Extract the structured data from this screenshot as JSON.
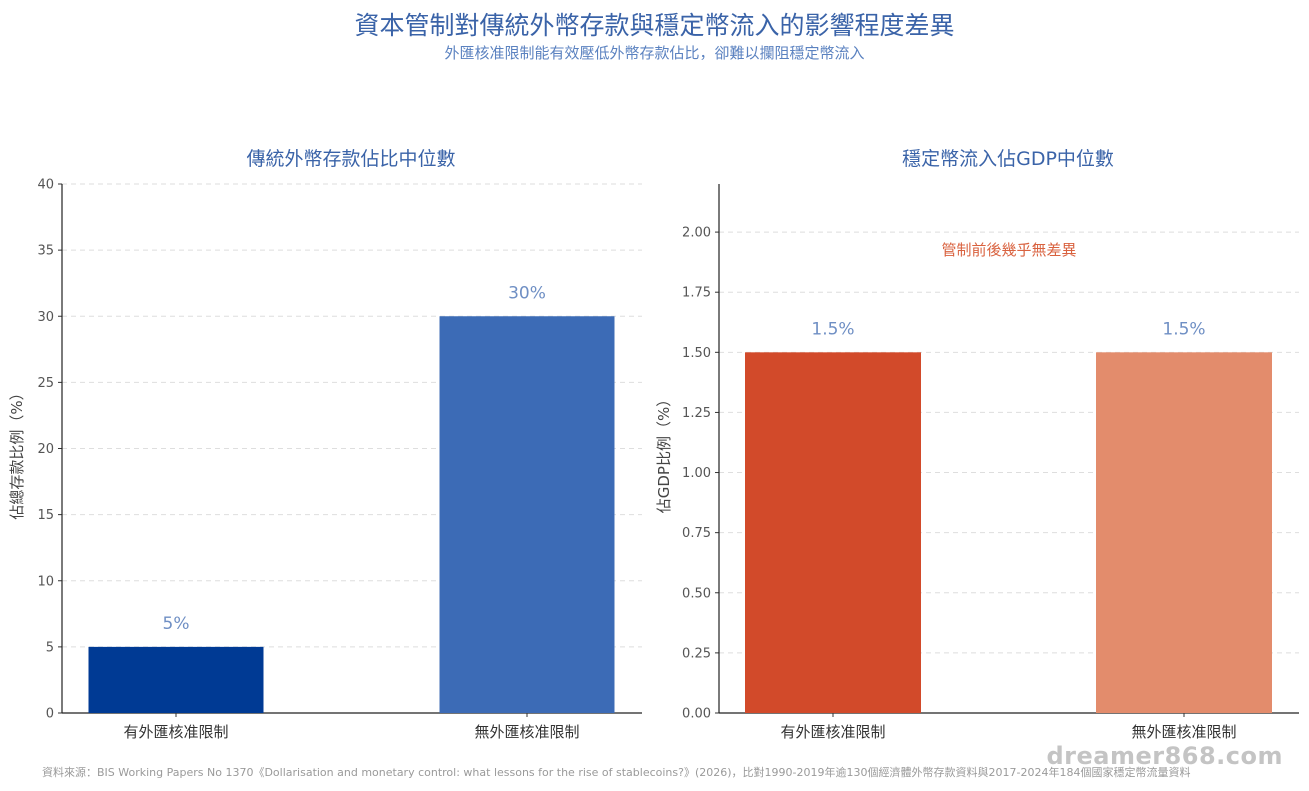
{
  "header": {
    "title": "資本管制對傳統外幣存款與穩定幣流入的影響程度差異",
    "subtitle": "外匯核准限制能有效壓低外幣存款佔比，卻難以攔阻穩定幣流入"
  },
  "chart_data": [
    {
      "type": "bar",
      "title": "傳統外幣存款佔比中位數",
      "xlabel": "",
      "ylabel": "佔總存款比例（%）",
      "categories": [
        "有外匯核准限制",
        "無外匯核准限制"
      ],
      "values": [
        5,
        30
      ],
      "value_labels": [
        "5%",
        "30%"
      ],
      "bar_colors": [
        "#003a94",
        "#3c6bb6"
      ],
      "label_color": "#6f8fc4",
      "ylim": [
        0,
        40
      ],
      "yticks": [
        "0",
        "5",
        "10",
        "15",
        "20",
        "25",
        "30",
        "35",
        "40"
      ],
      "grid": true
    },
    {
      "type": "bar",
      "title": "穩定幣流入佔GDP中位數",
      "xlabel": "",
      "ylabel": "佔GDP比例（%）",
      "categories": [
        "有外匯核准限制",
        "無外匯核准限制"
      ],
      "values": [
        1.5,
        1.5
      ],
      "value_labels": [
        "1.5%",
        "1.5%"
      ],
      "bar_colors": [
        "#d24a2a",
        "#e38c6c"
      ],
      "label_color": "#6f8fc4",
      "ylim": [
        0,
        2.2
      ],
      "yticks": [
        "0.00",
        "0.25",
        "0.50",
        "0.75",
        "1.00",
        "1.25",
        "1.50",
        "1.75",
        "2.00"
      ],
      "annotation": "管制前後幾乎無差異",
      "annotation_color": "#d9623f",
      "grid": true
    }
  ],
  "footer": {
    "source": "資料來源：BIS Working Papers No 1370《Dollarisation and monetary control: what lessons for the rise of stablecoins?》(2026)，比對1990-2019年逾130個經濟體外幣存款資料與2017-2024年184個國家穩定幣流量資料",
    "watermark": "dreamer868.com"
  }
}
